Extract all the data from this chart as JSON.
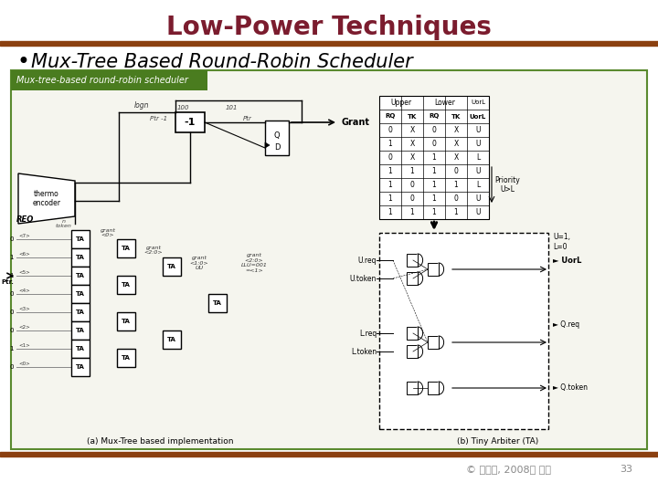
{
  "title": "Low-Power Techniques",
  "title_color": "#7B1C2E",
  "title_fontsize": 20,
  "bullet_text": "Mux-Tree Based Round-Robin Scheduler",
  "bullet_fontsize": 15,
  "bullet_color": "#000000",
  "subtitle_bar_color": "#4a7c1f",
  "subtitle_text": "Mux-tree-based round-robin scheduler",
  "subtitle_text_color": "#ffffff",
  "subtitle_fontsize": 7,
  "footer_text": "© 조준동, 2008년 가을",
  "footer_number": "33",
  "footer_color": "#888888",
  "footer_fontsize": 8,
  "bg_color": "#ffffff",
  "rule_color": "#8B4010",
  "content_border_color": "#5a8a2f",
  "content_bg": "#f5f5ee"
}
